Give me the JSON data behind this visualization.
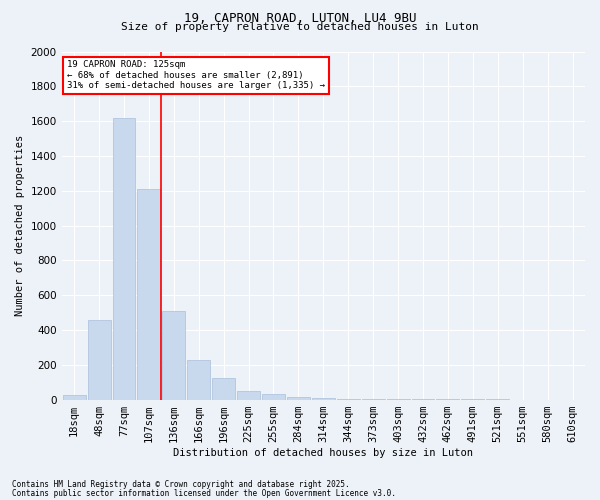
{
  "title1": "19, CAPRON ROAD, LUTON, LU4 9BU",
  "title2": "Size of property relative to detached houses in Luton",
  "xlabel": "Distribution of detached houses by size in Luton",
  "ylabel": "Number of detached properties",
  "bar_color": "#c8d9ee",
  "bar_edge_color": "#a8c0dc",
  "bg_color": "#edf1f8",
  "grid_color": "#ffffff",
  "categories": [
    "18sqm",
    "48sqm",
    "77sqm",
    "107sqm",
    "136sqm",
    "166sqm",
    "196sqm",
    "225sqm",
    "255sqm",
    "284sqm",
    "314sqm",
    "344sqm",
    "373sqm",
    "403sqm",
    "432sqm",
    "462sqm",
    "491sqm",
    "521sqm",
    "551sqm",
    "580sqm",
    "610sqm"
  ],
  "values": [
    25,
    460,
    1620,
    1210,
    510,
    225,
    125,
    50,
    30,
    15,
    8,
    4,
    3,
    2,
    1,
    1,
    1,
    1,
    0,
    0,
    0
  ],
  "red_line_x": 3.5,
  "annotation_title": "19 CAPRON ROAD: 125sqm",
  "annotation_line1": "← 68% of detached houses are smaller (2,891)",
  "annotation_line2": "31% of semi-detached houses are larger (1,335) →",
  "footer1": "Contains HM Land Registry data © Crown copyright and database right 2025.",
  "footer2": "Contains public sector information licensed under the Open Government Licence v3.0.",
  "ylim": [
    0,
    2000
  ],
  "yticks": [
    0,
    200,
    400,
    600,
    800,
    1000,
    1200,
    1400,
    1600,
    1800,
    2000
  ]
}
